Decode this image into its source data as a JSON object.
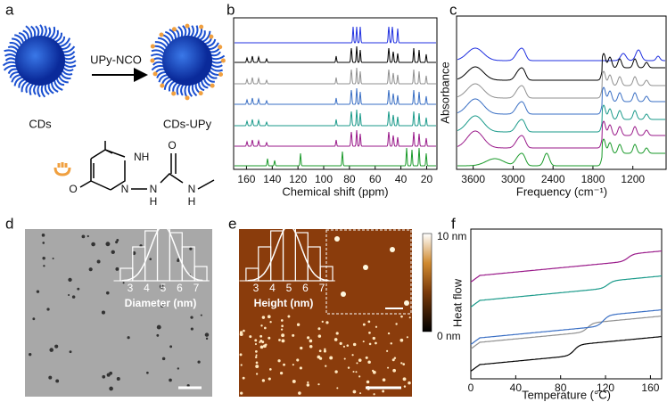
{
  "panels": {
    "a": {
      "label": "a",
      "reagent": "UPy-NCO",
      "left": "CDs",
      "right": "CDs-UPy",
      "atoms": [
        "NH",
        "O",
        "O",
        "N",
        "N",
        "H",
        "N",
        "H"
      ]
    },
    "b": {
      "label": "b",
      "xlabel": "Chemical shift (ppm)",
      "xlim": [
        170,
        12
      ],
      "xticks": [
        160,
        140,
        120,
        100,
        80,
        60,
        40,
        20
      ]
    },
    "c": {
      "label": "c",
      "ylabel": "Absorbance",
      "xlabel": "Frequency (cm⁻¹)",
      "xlim": [
        3850,
        700
      ],
      "xticks": [
        3600,
        3000,
        2400,
        1800,
        1200
      ]
    },
    "d": {
      "label": "d",
      "xlabel": "Diameter (nm)",
      "xticks": [
        3,
        4,
        5,
        6,
        7
      ]
    },
    "e": {
      "label": "e",
      "xlabel": "Height (nm)",
      "xticks": [
        3,
        4,
        5,
        6,
        7
      ],
      "colorbar_max": "10 nm",
      "colorbar_min": "0 nm"
    },
    "f": {
      "label": "f",
      "ylabel": "Heat flow",
      "xlabel": "Temperature (°C)",
      "xlim": [
        0,
        170
      ],
      "xticks": [
        0,
        40,
        80,
        120,
        160
      ]
    }
  }
}
